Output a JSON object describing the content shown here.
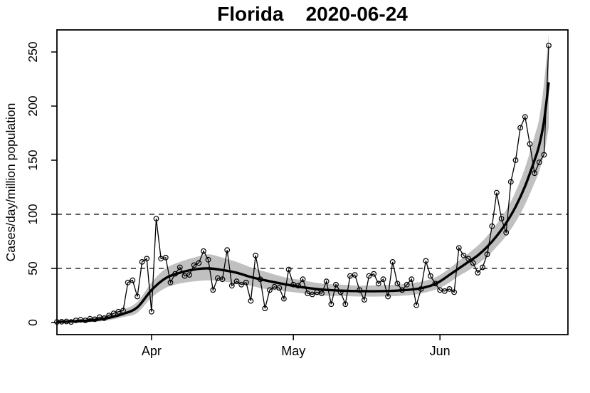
{
  "chart_data": {
    "type": "line",
    "title_left": "Florida",
    "title_right": "2020-06-24",
    "ylabel": "Cases/day/million population",
    "xlabel": "",
    "x_tick_labels": [
      "Apr",
      "May",
      "Jun"
    ],
    "x_tick_days": [
      20,
      50,
      81
    ],
    "y_ticks": [
      0,
      50,
      100,
      150,
      200,
      250
    ],
    "ylim": [
      0,
      265
    ],
    "dashed_hlines": [
      50,
      100
    ],
    "grid": "dashed horizontal at 50 and 100 only",
    "legend_position": "none",
    "marker": "open-circle",
    "start_date": "2020-03-12",
    "end_date": "2020-06-24",
    "x_unit": "day index from 2020-03-12",
    "values": [
      0.5,
      0.7,
      1,
      0.5,
      2,
      2.5,
      2,
      3.5,
      3,
      5,
      4,
      6.5,
      8.5,
      10,
      11,
      37,
      39,
      24,
      56,
      59,
      10,
      96,
      59,
      60,
      37,
      45,
      51,
      43,
      44,
      53,
      55,
      66,
      58,
      30,
      41,
      40,
      67,
      34,
      38,
      35,
      37,
      20,
      62,
      40,
      13,
      30,
      33,
      32,
      22,
      49,
      35,
      34,
      40,
      27,
      26,
      28,
      27,
      38,
      17,
      35,
      28,
      17,
      43,
      44,
      30,
      21,
      43,
      45,
      36,
      40,
      24,
      56,
      36,
      30,
      35,
      40,
      16,
      31,
      57,
      43,
      36,
      30,
      29,
      31,
      28,
      69,
      62,
      59,
      55,
      46,
      51,
      63,
      89,
      120,
      96,
      83,
      130,
      150,
      180,
      190,
      165,
      138,
      148,
      155,
      256
    ],
    "trend": [
      {
        "d": 0,
        "y": 0.5,
        "lo": 0,
        "hi": 2
      },
      {
        "d": 6,
        "y": 1.5,
        "lo": 0.3,
        "hi": 3.5
      },
      {
        "d": 10,
        "y": 3.5,
        "lo": 1.5,
        "hi": 6.5
      },
      {
        "d": 14,
        "y": 8,
        "lo": 5,
        "hi": 12
      },
      {
        "d": 17,
        "y": 14,
        "lo": 9,
        "hi": 19
      },
      {
        "d": 20,
        "y": 30,
        "lo": 23,
        "hi": 37
      },
      {
        "d": 23,
        "y": 41,
        "lo": 32,
        "hi": 50
      },
      {
        "d": 26,
        "y": 46,
        "lo": 36,
        "hi": 56
      },
      {
        "d": 29,
        "y": 49,
        "lo": 38,
        "hi": 60
      },
      {
        "d": 32,
        "y": 50,
        "lo": 39,
        "hi": 63
      },
      {
        "d": 35,
        "y": 48.5,
        "lo": 38,
        "hi": 60
      },
      {
        "d": 38,
        "y": 46,
        "lo": 36,
        "hi": 56
      },
      {
        "d": 41,
        "y": 42,
        "lo": 34,
        "hi": 51
      },
      {
        "d": 44,
        "y": 39,
        "lo": 31,
        "hi": 47
      },
      {
        "d": 48,
        "y": 35.5,
        "lo": 29,
        "hi": 42
      },
      {
        "d": 52,
        "y": 32.5,
        "lo": 27,
        "hi": 39
      },
      {
        "d": 56,
        "y": 30.5,
        "lo": 25,
        "hi": 36
      },
      {
        "d": 60,
        "y": 29.5,
        "lo": 24.5,
        "hi": 35
      },
      {
        "d": 64,
        "y": 29,
        "lo": 24,
        "hi": 34
      },
      {
        "d": 68,
        "y": 29,
        "lo": 24,
        "hi": 34.5
      },
      {
        "d": 72,
        "y": 29.5,
        "lo": 24.5,
        "hi": 35
      },
      {
        "d": 76,
        "y": 31,
        "lo": 26,
        "hi": 37
      },
      {
        "d": 79,
        "y": 34,
        "lo": 29,
        "hi": 40
      },
      {
        "d": 81,
        "y": 38,
        "lo": 32,
        "hi": 44
      },
      {
        "d": 83,
        "y": 44,
        "lo": 37,
        "hi": 50
      },
      {
        "d": 85,
        "y": 50,
        "lo": 43,
        "hi": 57
      },
      {
        "d": 87,
        "y": 56,
        "lo": 48,
        "hi": 64
      },
      {
        "d": 89,
        "y": 62,
        "lo": 54,
        "hi": 71
      },
      {
        "d": 91,
        "y": 70,
        "lo": 61,
        "hi": 80
      },
      {
        "d": 93,
        "y": 80,
        "lo": 70,
        "hi": 91
      },
      {
        "d": 95,
        "y": 92,
        "lo": 80,
        "hi": 104
      },
      {
        "d": 97,
        "y": 107,
        "lo": 93,
        "hi": 121
      },
      {
        "d": 99,
        "y": 126,
        "lo": 109,
        "hi": 143
      },
      {
        "d": 101,
        "y": 150,
        "lo": 129,
        "hi": 172
      },
      {
        "d": 102,
        "y": 164,
        "lo": 140,
        "hi": 189
      },
      {
        "d": 103,
        "y": 186,
        "lo": 156,
        "hi": 221
      },
      {
        "d": 104,
        "y": 222,
        "lo": 180,
        "hi": 266
      }
    ],
    "colors": {
      "background": "#ffffff",
      "data_line": "#000000",
      "trend_line": "#000000",
      "confidence_band": "#c0c0c0",
      "text": "#000000",
      "dashed_line": "#000000"
    }
  }
}
